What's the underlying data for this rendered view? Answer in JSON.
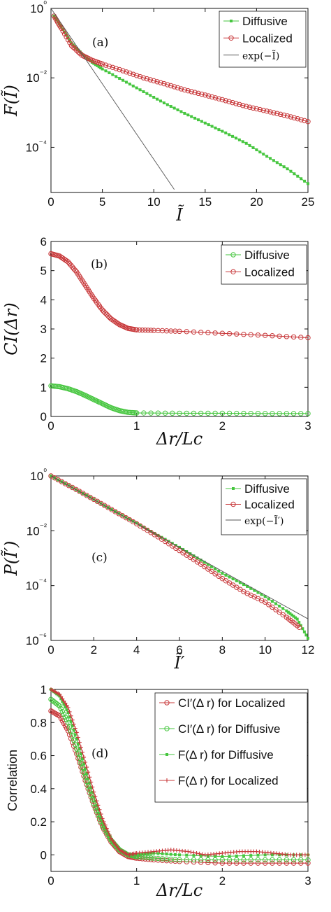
{
  "colors": {
    "diffusive": "#46c63f",
    "localized": "#c8383a",
    "reference": "#555555",
    "axis": "#111111"
  },
  "chart_data": [
    {
      "id": "a",
      "type": "line",
      "panel_label": "(a)",
      "xlabel": "Ĩ",
      "ylabel": "F(Ĩ)",
      "xlim": [
        0,
        25
      ],
      "ylim": [
        5e-06,
        1
      ],
      "yscale": "log",
      "xticks": [
        "0",
        "5",
        "10",
        "15",
        "20",
        "25"
      ],
      "yticks": [
        "10⁰",
        "10⁻²",
        "10⁻⁴"
      ],
      "legend_position": "top-right",
      "series": [
        {
          "name": "Diffusive",
          "marker": "dot",
          "x": [
            0.3,
            1,
            2,
            3,
            4,
            5,
            7,
            9,
            11,
            13,
            15,
            17,
            19,
            21,
            23,
            25
          ],
          "y": [
            0.6,
            0.3,
            0.1,
            0.05,
            0.028,
            0.018,
            0.0085,
            0.004,
            0.0019,
            0.00095,
            0.0005,
            0.00026,
            0.00013,
            5.5e-05,
            2.4e-05,
            9e-06
          ]
        },
        {
          "name": "Localized",
          "marker": "circle",
          "x": [
            0.3,
            1,
            2,
            3,
            4,
            5,
            7,
            9,
            11,
            13,
            15,
            17,
            19,
            21,
            23,
            25
          ],
          "y": [
            0.6,
            0.27,
            0.085,
            0.045,
            0.032,
            0.025,
            0.016,
            0.01,
            0.0068,
            0.0045,
            0.0032,
            0.0022,
            0.0015,
            0.0011,
            0.0008,
            0.00055
          ]
        },
        {
          "name": "exp(−Ĩ)",
          "marker": "none",
          "x": [
            0,
            12
          ],
          "y": [
            1,
            6.1e-06
          ]
        }
      ]
    },
    {
      "id": "b",
      "type": "line",
      "panel_label": "(b)",
      "xlabel": "Δr/L_c",
      "ylabel": "C_I(Δr)",
      "xlim": [
        0,
        3
      ],
      "ylim": [
        0,
        6
      ],
      "yscale": "linear",
      "xticks": [
        "0",
        "1",
        "2",
        "3"
      ],
      "yticks": [
        "0",
        "1",
        "2",
        "3",
        "4",
        "5",
        "6"
      ],
      "legend_position": "top-right",
      "series": [
        {
          "name": "Diffusive",
          "marker": "circle",
          "x": [
            0,
            0.1,
            0.2,
            0.3,
            0.4,
            0.5,
            0.6,
            0.7,
            0.8,
            0.9,
            1.0,
            1.5,
            2.0,
            2.5,
            3.0
          ],
          "y": [
            1.05,
            1.02,
            0.95,
            0.85,
            0.72,
            0.58,
            0.44,
            0.3,
            0.2,
            0.14,
            0.12,
            0.11,
            0.11,
            0.1,
            0.1
          ]
        },
        {
          "name": "Localized",
          "marker": "circle",
          "x": [
            0,
            0.1,
            0.2,
            0.3,
            0.4,
            0.5,
            0.6,
            0.7,
            0.8,
            0.9,
            1.0,
            1.2,
            1.5,
            2.0,
            2.5,
            3.0
          ],
          "y": [
            5.58,
            5.5,
            5.3,
            4.95,
            4.5,
            4.05,
            3.65,
            3.35,
            3.15,
            3.02,
            2.97,
            2.95,
            2.92,
            2.85,
            2.78,
            2.7
          ]
        }
      ]
    },
    {
      "id": "c",
      "type": "line",
      "panel_label": "(c)",
      "xlabel": "Ĩ′",
      "ylabel": "P(Ĩ′)",
      "xlim": [
        0,
        12
      ],
      "ylim": [
        1e-06,
        1
      ],
      "yscale": "log",
      "xticks": [
        "0",
        "2",
        "4",
        "6",
        "8",
        "10",
        "12"
      ],
      "yticks": [
        "10⁰",
        "10⁻²",
        "10⁻⁴",
        "10⁻⁶"
      ],
      "legend_position": "top-right",
      "series": [
        {
          "name": "Diffusive",
          "marker": "dot",
          "x": [
            0,
            1,
            2,
            3,
            4,
            5,
            6,
            7,
            8,
            9,
            10,
            11,
            11.5,
            12
          ],
          "y": [
            1,
            0.38,
            0.14,
            0.05,
            0.019,
            0.0068,
            0.0025,
            0.00085,
            0.00028,
            0.00011,
            4e-05,
            1.2e-05,
            6e-06,
            1.2e-06
          ]
        },
        {
          "name": "Localized",
          "marker": "circle",
          "x": [
            0,
            1,
            2,
            3,
            4,
            5,
            6,
            7,
            8,
            9,
            10,
            11,
            11.6
          ],
          "y": [
            1,
            0.38,
            0.14,
            0.05,
            0.018,
            0.006,
            0.0019,
            0.0006,
            0.00018,
            6e-05,
            2.5e-05,
            7e-06,
            3e-06
          ]
        },
        {
          "name": "exp(−Ĩ′)",
          "marker": "none",
          "x": [
            0,
            12
          ],
          "y": [
            1,
            6.1e-06
          ]
        }
      ]
    },
    {
      "id": "d",
      "type": "line",
      "panel_label": "(d)",
      "xlabel": "Δr/L_c",
      "ylabel": "Correlation",
      "xlim": [
        0,
        3
      ],
      "ylim": [
        -0.1,
        1
      ],
      "yscale": "linear",
      "xticks": [
        "0",
        "1",
        "2",
        "3"
      ],
      "yticks": [
        "0",
        "0.2",
        "0.4",
        "0.6",
        "0.8",
        "1"
      ],
      "legend_position": "top-right",
      "series": [
        {
          "name": "C_I′(Δ r) for Localized",
          "marker": "circle",
          "color_key": "localized",
          "x": [
            0,
            0.1,
            0.2,
            0.3,
            0.4,
            0.5,
            0.6,
            0.7,
            0.8,
            0.9,
            1.0,
            1.2,
            1.5,
            2.0,
            2.5,
            3.0
          ],
          "y": [
            0.87,
            0.84,
            0.75,
            0.61,
            0.45,
            0.3,
            0.17,
            0.08,
            0.02,
            -0.01,
            -0.02,
            -0.03,
            -0.04,
            -0.05,
            -0.05,
            -0.05
          ]
        },
        {
          "name": "C_I′(Δ r) for Diffusive",
          "marker": "circle",
          "color_key": "diffusive",
          "x": [
            0,
            0.1,
            0.2,
            0.3,
            0.4,
            0.5,
            0.6,
            0.7,
            0.8,
            0.9,
            1.0,
            1.2,
            1.5,
            2.0,
            2.5,
            3.0
          ],
          "y": [
            0.94,
            0.9,
            0.8,
            0.64,
            0.47,
            0.31,
            0.18,
            0.09,
            0.03,
            0.0,
            -0.01,
            -0.02,
            -0.03,
            -0.03,
            -0.03,
            -0.03
          ]
        },
        {
          "name": "F(Δ r) for Diffusive",
          "marker": "dot",
          "color_key": "diffusive",
          "x": [
            0,
            0.1,
            0.2,
            0.3,
            0.4,
            0.5,
            0.6,
            0.7,
            0.8,
            0.9,
            1.0,
            1.2,
            1.5,
            2.0,
            2.5,
            3.0
          ],
          "y": [
            1.0,
            0.96,
            0.86,
            0.7,
            0.52,
            0.35,
            0.2,
            0.09,
            0.03,
            0.0,
            0.0,
            0.01,
            0.0,
            -0.01,
            0.0,
            0.0
          ]
        },
        {
          "name": "F(Δ r) for Localized",
          "marker": "plus",
          "color_key": "localized",
          "x": [
            0,
            0.1,
            0.2,
            0.3,
            0.4,
            0.5,
            0.6,
            0.7,
            0.8,
            0.9,
            1.0,
            1.2,
            1.4,
            1.6,
            1.8,
            2.0,
            2.2,
            2.4,
            2.6,
            2.8,
            3.0
          ],
          "y": [
            1.0,
            0.97,
            0.89,
            0.74,
            0.56,
            0.38,
            0.22,
            0.1,
            0.03,
            0.0,
            0.01,
            0.02,
            0.03,
            0.02,
            0.0,
            0.01,
            0.02,
            0.02,
            0.01,
            0.0,
            0.0
          ]
        }
      ]
    }
  ]
}
